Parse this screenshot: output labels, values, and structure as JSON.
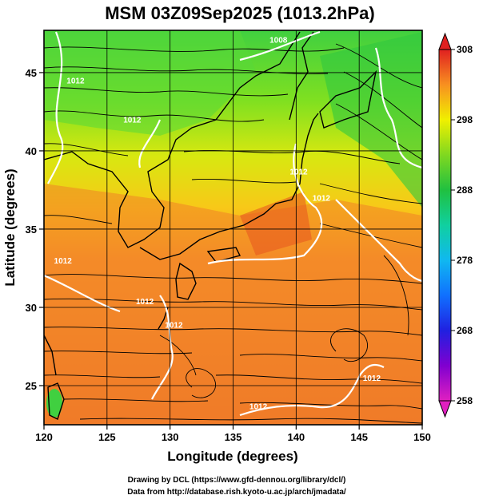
{
  "title": "MSM 03Z09Sep2025 (1013.2hPa)",
  "map": {
    "lon_range": [
      120,
      150
    ],
    "lat_range": [
      22.5,
      47.7
    ],
    "grid": true,
    "projection": "equirectangular"
  },
  "x_axis": {
    "label": "Longitude (degrees)",
    "ticks": [
      {
        "value": 120,
        "label": "120"
      },
      {
        "value": 125,
        "label": "125"
      },
      {
        "value": 130,
        "label": "130"
      },
      {
        "value": 135,
        "label": "135"
      },
      {
        "value": 140,
        "label": "140"
      },
      {
        "value": 145,
        "label": "145"
      },
      {
        "value": 150,
        "label": "150"
      }
    ]
  },
  "y_axis": {
    "label": "Latitude  (degrees)",
    "ticks": [
      {
        "value": 25,
        "label": "25"
      },
      {
        "value": 30,
        "label": "30"
      },
      {
        "value": 35,
        "label": "35"
      },
      {
        "value": 40,
        "label": "40"
      },
      {
        "value": 45,
        "label": "45"
      }
    ]
  },
  "colorbar": {
    "min": 258,
    "max": 308,
    "labels": [
      {
        "value": 308,
        "label": "308"
      },
      {
        "value": 298,
        "label": "298"
      },
      {
        "value": 288,
        "label": "288"
      },
      {
        "value": 278,
        "label": "278"
      },
      {
        "value": 268,
        "label": "268"
      },
      {
        "value": 258,
        "label": "258"
      }
    ],
    "colors": [
      "#e020c0",
      "#a000d0",
      "#4010d0",
      "#1040ff",
      "#1090ff",
      "#10c0e0",
      "#10d0a0",
      "#20c040",
      "#60d020",
      "#b0e010",
      "#f0f000",
      "#f8c010",
      "#f89020",
      "#f06020",
      "#e02020"
    ]
  },
  "contours": [
    {
      "label": "1012",
      "lon": 122.5,
      "lat": 44.3
    },
    {
      "label": "1012",
      "lon": 127.0,
      "lat": 41.8
    },
    {
      "label": "1008",
      "lon": 138.6,
      "lat": 46.9
    },
    {
      "label": "1012",
      "lon": 140.2,
      "lat": 38.5
    },
    {
      "label": "1012",
      "lon": 142.0,
      "lat": 36.8
    },
    {
      "label": "1012",
      "lon": 121.5,
      "lat": 32.8
    },
    {
      "label": "1012",
      "lon": 128.0,
      "lat": 30.2
    },
    {
      "label": "1012",
      "lon": 130.3,
      "lat": 28.7
    },
    {
      "label": "1012",
      "lon": 137.0,
      "lat": 23.5
    },
    {
      "label": "1012",
      "lon": 146.0,
      "lat": 25.3
    }
  ],
  "credits": {
    "line1": "Drawing by DCL (https://www.gfd-dennou.org/library/dcl/)",
    "line2": "Data from http://database.rish.kyoto-u.ac.jp/arch/jmadata/"
  }
}
